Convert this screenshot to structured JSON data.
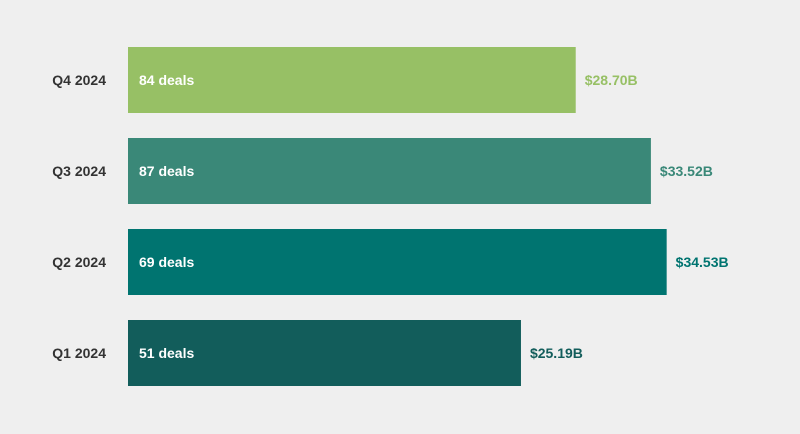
{
  "chart_data": {
    "type": "bar",
    "orientation": "horizontal",
    "categories": [
      "Q4 2024",
      "Q3 2024",
      "Q2 2024",
      "Q1 2024"
    ],
    "values": [
      28.7,
      33.52,
      34.53,
      25.19
    ],
    "value_labels": [
      "$28.70B",
      "$33.52B",
      "$34.53B",
      "$25.19B"
    ],
    "deal_labels": [
      "84 deals",
      "87 deals",
      "69 deals",
      "51 deals"
    ],
    "deal_counts": [
      84,
      87,
      69,
      51
    ],
    "colors": [
      "#97c065",
      "#3a8878",
      "#007470",
      "#125d5b"
    ],
    "title": "",
    "xlabel": "",
    "ylabel": "",
    "xlim": [
      0,
      40
    ],
    "grid": false,
    "legend": "none"
  }
}
